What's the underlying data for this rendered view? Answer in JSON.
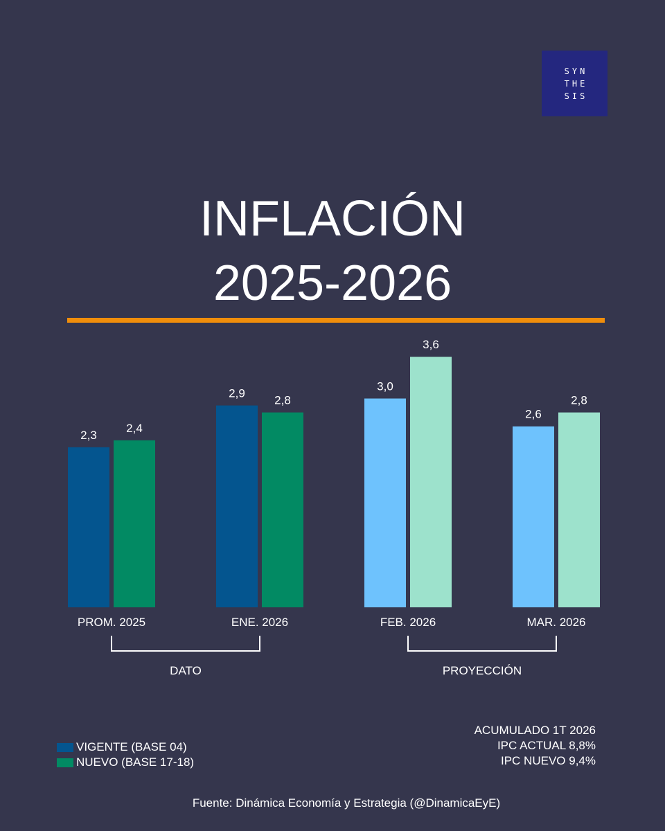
{
  "logo": {
    "lines": [
      "SYN",
      "THE",
      "SIS"
    ]
  },
  "title": {
    "line1": "INFLACIÓN",
    "line2": "2025-2026"
  },
  "accent_color": "#f08e0b",
  "chart_data": {
    "type": "bar",
    "categories": [
      "PROM. 2025",
      "ENE. 2026",
      "FEB. 2026",
      "MAR. 2026"
    ],
    "series": [
      {
        "name": "VIGENTE (BASE 04)",
        "values": [
          2.3,
          2.9,
          3.0,
          2.6
        ],
        "labels": [
          "2,3",
          "2,9",
          "3,0",
          "2,6"
        ]
      },
      {
        "name": "NUEVO (BASE 17-18)",
        "values": [
          2.4,
          2.8,
          3.6,
          2.8
        ],
        "labels": [
          "2,4",
          "2,8",
          "3,6",
          "2,8"
        ]
      }
    ],
    "colors": {
      "vigente_dato": "#04558f",
      "nuevo_dato": "#028a63",
      "vigente_proyeccion": "#6ec2fd",
      "nuevo_proyeccion": "#9de2cc"
    },
    "groups": [
      {
        "label": "DATO",
        "categories": [
          "PROM. 2025",
          "ENE. 2026"
        ]
      },
      {
        "label": "PROYECCIÓN",
        "categories": [
          "FEB. 2026",
          "MAR. 2026"
        ]
      }
    ],
    "ylim": [
      0,
      3.6
    ],
    "legend_position": "bottom-left"
  },
  "summary": {
    "line1": "ACUMULADO 1T 2026",
    "line2": "IPC ACTUAL 8,8%",
    "line3": "IPC NUEVO 9,4%"
  },
  "source": "Fuente: Dinámica Economía y Estrategia (@DinamicaEyE)"
}
